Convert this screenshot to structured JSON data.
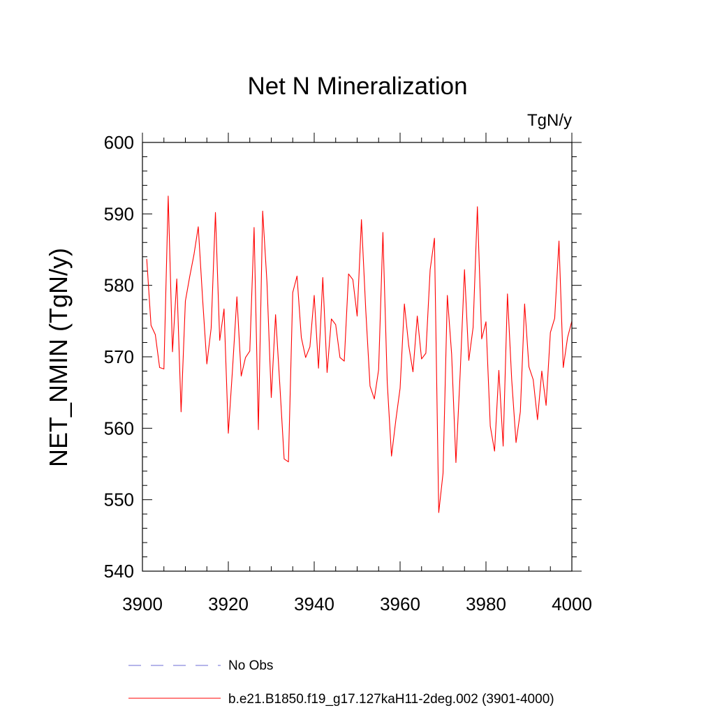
{
  "chart_data": {
    "type": "line",
    "title": "Net N Mineralization",
    "units_label": "TgN/y",
    "xlabel": "",
    "ylabel": "NET_NMIN  (TgN/y)",
    "xlim": [
      3900,
      4000
    ],
    "ylim": [
      540,
      600
    ],
    "x_ticks": [
      3900,
      3920,
      3940,
      3960,
      3980,
      4000
    ],
    "y_ticks": [
      540,
      550,
      560,
      570,
      580,
      590,
      600
    ],
    "grid": false,
    "series": [
      {
        "name": "b.e21.B1850.f19_g17.127kaH11-2deg.002 (3901-4000)",
        "color": "#ff0000",
        "dash": "solid",
        "x_start": 3901,
        "x_step": 1,
        "values": [
          583.7,
          574.4,
          573.1,
          568.5,
          568.3,
          592.5,
          570.7,
          580.9,
          562.3,
          577.8,
          581.2,
          584.3,
          588.2,
          578.2,
          569.0,
          574.0,
          590.2,
          572.3,
          576.7,
          559.3,
          568.5,
          578.4,
          567.3,
          569.9,
          570.8,
          588.1,
          559.8,
          590.4,
          580.4,
          564.3,
          575.9,
          566.0,
          555.7,
          555.3,
          579.0,
          581.3,
          572.7,
          569.9,
          571.4,
          578.6,
          568.4,
          581.1,
          567.8,
          575.3,
          574.5,
          569.9,
          569.4,
          581.6,
          580.8,
          575.7,
          589.2,
          576.6,
          565.9,
          564.1,
          568.2,
          587.4,
          566.5,
          556.1,
          561.1,
          565.6,
          577.4,
          571.6,
          567.9,
          575.7,
          569.7,
          570.5,
          582.2,
          586.6,
          548.2,
          553.7,
          578.6,
          570.4,
          555.2,
          567.8,
          582.2,
          569.5,
          574.1,
          591.0,
          572.5,
          574.9,
          560.3,
          556.8,
          568.1,
          557.5,
          578.8,
          566.7,
          558.0,
          562.3,
          577.4,
          568.6,
          566.8,
          561.2,
          568.0,
          563.2,
          573.4,
          575.4,
          586.2,
          568.5,
          572.7,
          575.0
        ]
      }
    ],
    "legend": {
      "placement": "bottom-left",
      "entries": [
        {
          "label": "No Obs",
          "color": "#6b6bd6",
          "dash": "dashed"
        },
        {
          "label": "b.e21.B1850.f19_g17.127kaH11-2deg.002 (3901-4000)",
          "color": "#ff0000",
          "dash": "solid"
        }
      ]
    }
  }
}
